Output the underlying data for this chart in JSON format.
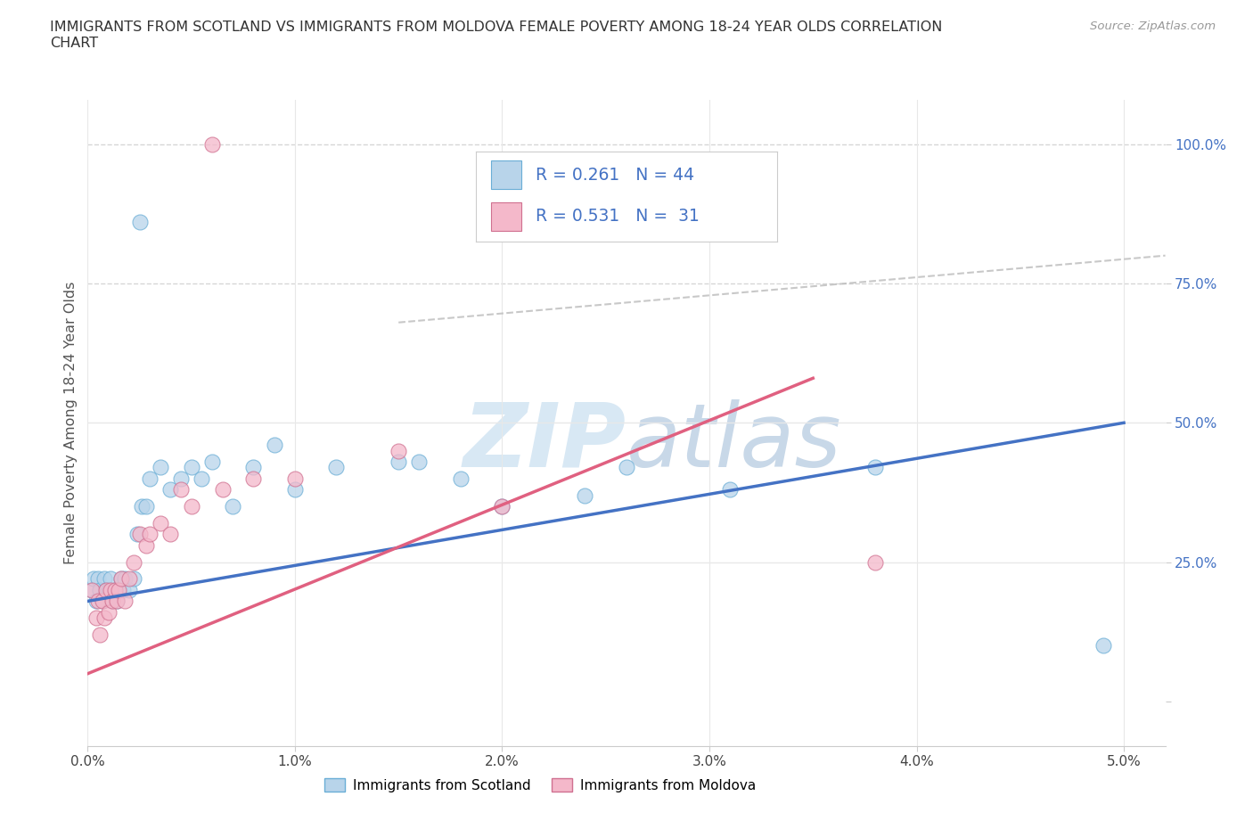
{
  "title": "IMMIGRANTS FROM SCOTLAND VS IMMIGRANTS FROM MOLDOVA FEMALE POVERTY AMONG 18-24 YEAR OLDS CORRELATION\nCHART",
  "source": "Source: ZipAtlas.com",
  "ylabel": "Female Poverty Among 18-24 Year Olds",
  "xlim": [
    0.0,
    5.2
  ],
  "ylim": [
    -8.0,
    108.0
  ],
  "x_ticks": [
    0.0,
    1.0,
    2.0,
    3.0,
    4.0,
    5.0
  ],
  "x_tick_labels": [
    "0.0%",
    "1.0%",
    "2.0%",
    "3.0%",
    "4.0%",
    "5.0%"
  ],
  "y_ticks": [
    0,
    25,
    50,
    75,
    100
  ],
  "y_tick_labels": [
    "",
    "25.0%",
    "50.0%",
    "75.0%",
    "100.0%"
  ],
  "scotland_color": "#b8d4ea",
  "scotland_edge": "#6aaed6",
  "scotland_line_color": "#4472c4",
  "moldova_color": "#f4b8ca",
  "moldova_edge": "#d07090",
  "moldova_line_color": "#e06080",
  "r_scotland": 0.261,
  "n_scotland": 44,
  "r_moldova": 0.531,
  "n_moldova": 31,
  "watermark_color": "#d8e8f4",
  "background_color": "#ffffff",
  "grid_solid_color": "#e8e8e8",
  "grid_dashed_color": "#cccccc",
  "scotland_x": [
    0.02,
    0.03,
    0.04,
    0.05,
    0.06,
    0.07,
    0.08,
    0.09,
    0.1,
    0.11,
    0.12,
    0.13,
    0.14,
    0.15,
    0.16,
    0.17,
    0.18,
    0.2,
    0.22,
    0.24,
    0.26,
    0.28,
    0.3,
    0.35,
    0.4,
    0.45,
    0.5,
    0.55,
    0.6,
    0.7,
    0.8,
    0.9,
    1.0,
    1.2,
    1.5,
    1.6,
    1.8,
    2.0,
    2.4,
    2.6,
    3.1,
    3.8,
    4.9,
    0.25
  ],
  "scotland_y": [
    20,
    22,
    18,
    22,
    20,
    18,
    22,
    20,
    20,
    22,
    18,
    20,
    18,
    20,
    22,
    20,
    22,
    20,
    22,
    30,
    35,
    35,
    40,
    42,
    38,
    40,
    42,
    40,
    43,
    35,
    42,
    46,
    38,
    42,
    43,
    43,
    40,
    35,
    37,
    42,
    38,
    42,
    10,
    86
  ],
  "moldova_x": [
    0.02,
    0.04,
    0.05,
    0.06,
    0.07,
    0.08,
    0.09,
    0.1,
    0.11,
    0.12,
    0.13,
    0.14,
    0.15,
    0.16,
    0.18,
    0.2,
    0.22,
    0.25,
    0.28,
    0.3,
    0.35,
    0.4,
    0.45,
    0.5,
    0.65,
    0.8,
    1.0,
    1.5,
    2.0,
    3.8,
    0.6
  ],
  "moldova_y": [
    20,
    15,
    18,
    12,
    18,
    15,
    20,
    16,
    20,
    18,
    20,
    18,
    20,
    22,
    18,
    22,
    25,
    30,
    28,
    30,
    32,
    30,
    38,
    35,
    38,
    40,
    40,
    45,
    35,
    25,
    100
  ],
  "scotland_trend": [
    18.0,
    50.0
  ],
  "moldova_trend_x": [
    0.0,
    3.5
  ],
  "moldova_trend_y": [
    5.0,
    58.0
  ],
  "dashed_line_x": [
    1.5,
    5.2
  ],
  "dashed_line_y": [
    68.0,
    80.0
  ]
}
